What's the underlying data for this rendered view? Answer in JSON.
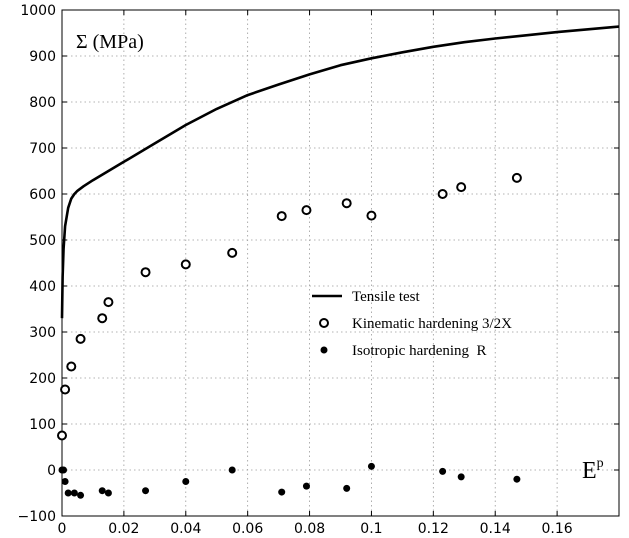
{
  "chart_data": {
    "type": "scatter",
    "title": "",
    "xlabel": "E",
    "xlabel_sup": "p",
    "ylabel": "Σ (MPa)",
    "xlim": [
      0,
      0.18
    ],
    "ylim": [
      -100,
      1000
    ],
    "x_ticks": [
      0,
      0.02,
      0.04,
      0.06,
      0.08,
      0.1,
      0.12,
      0.14,
      0.16
    ],
    "x_tick_labels": [
      "0",
      "0.02",
      "0.04",
      "0.06",
      "0.08",
      "0.1",
      "0.12",
      "0.14",
      "0.16"
    ],
    "y_ticks": [
      -100,
      0,
      100,
      200,
      300,
      400,
      500,
      600,
      700,
      800,
      900,
      1000
    ],
    "y_tick_labels": [
      "−100",
      "0",
      "100",
      "200",
      "300",
      "400",
      "500",
      "600",
      "700",
      "800",
      "900",
      "1000"
    ],
    "grid": true,
    "legend_position": "center-right",
    "series": [
      {
        "name": "Tensile test",
        "kind": "line",
        "color": "#000000",
        "x": [
          0,
          0.0002,
          0.0005,
          0.001,
          0.002,
          0.003,
          0.004,
          0.005,
          0.007,
          0.01,
          0.015,
          0.02,
          0.03,
          0.04,
          0.05,
          0.06,
          0.07,
          0.08,
          0.09,
          0.1,
          0.11,
          0.12,
          0.13,
          0.14,
          0.15,
          0.16,
          0.17,
          0.18
        ],
        "y": [
          330,
          420,
          480,
          530,
          570,
          590,
          600,
          607,
          617,
          630,
          650,
          670,
          710,
          750,
          785,
          815,
          838,
          860,
          880,
          895,
          908,
          920,
          930,
          938,
          945,
          952,
          958,
          964
        ]
      },
      {
        "name": "Kinematic hardening 3/2X",
        "kind": "scatter",
        "marker": "open-circle",
        "color": "#000000",
        "x": [
          0,
          0.001,
          0.003,
          0.006,
          0.013,
          0.015,
          0.027,
          0.04,
          0.055,
          0.071,
          0.079,
          0.092,
          0.1,
          0.123,
          0.129,
          0.147
        ],
        "y": [
          75,
          175,
          225,
          285,
          330,
          365,
          430,
          447,
          472,
          552,
          565,
          580,
          553,
          600,
          615,
          635
        ]
      },
      {
        "name": "Isotropic hardening  R",
        "kind": "scatter",
        "marker": "filled-circle",
        "color": "#000000",
        "x": [
          0,
          0.0005,
          0.001,
          0.002,
          0.004,
          0.006,
          0.013,
          0.015,
          0.027,
          0.04,
          0.055,
          0.071,
          0.079,
          0.092,
          0.1,
          0.123,
          0.129,
          0.147
        ],
        "y": [
          0,
          0,
          -25,
          -50,
          -50,
          -55,
          -45,
          -50,
          -45,
          -25,
          0,
          -48,
          -35,
          -40,
          8,
          -3,
          -15,
          -20
        ]
      }
    ]
  }
}
